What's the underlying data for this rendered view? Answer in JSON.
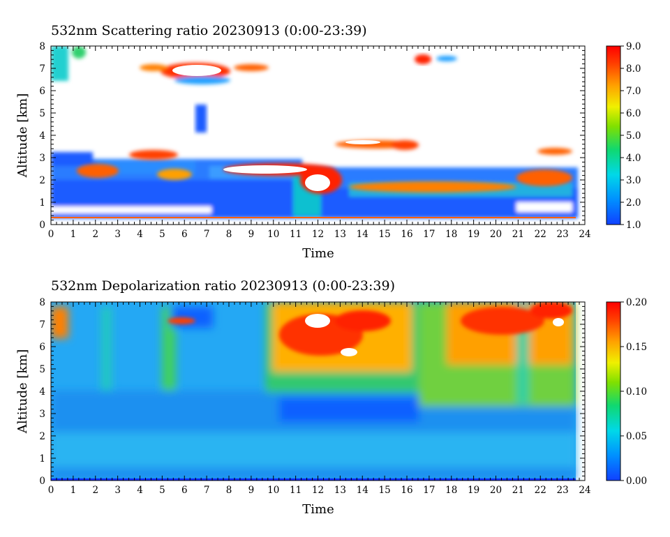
{
  "chart_data": [
    {
      "type": "heatmap",
      "title": "532nm Scattering ratio  20230913 (0:00-23:39)",
      "xlabel": "Time",
      "ylabel": "Altitude [km]",
      "xlim": [
        0,
        24
      ],
      "ylim": [
        0,
        8
      ],
      "x_ticks": [
        "0",
        "1",
        "2",
        "3",
        "4",
        "5",
        "6",
        "7",
        "8",
        "9",
        "10",
        "11",
        "12",
        "13",
        "14",
        "15",
        "16",
        "17",
        "18",
        "19",
        "20",
        "21",
        "22",
        "23",
        "24"
      ],
      "y_ticks": [
        "0",
        "1",
        "2",
        "3",
        "4",
        "5",
        "6",
        "7",
        "8"
      ],
      "data_end_time": 23.65,
      "colorbar": {
        "min": 1.0,
        "max": 9.0,
        "ticks": [
          "1.0",
          "2.0",
          "3.0",
          "4.0",
          "5.0",
          "6.0",
          "7.0",
          "8.0",
          "9.0"
        ],
        "colors": [
          "#1040ff",
          "#00b8ff",
          "#00e0a0",
          "#30d030",
          "#f0f000",
          "#ffa000",
          "#ff4000",
          "#ff0000"
        ]
      },
      "features": [
        {
          "desc": "boundary layer aerosol",
          "time": [
            0,
            23.65
          ],
          "altitude": [
            0.3,
            2.2
          ],
          "value": 2.0
        },
        {
          "desc": "cloud near 2.4 km",
          "time": [
            7.5,
            11
          ],
          "altitude": [
            2.1,
            2.7
          ],
          "value": 9.0
        },
        {
          "desc": "cloud near 2.3 km",
          "time": [
            11,
            13.5
          ],
          "altitude": [
            1.4,
            2.7
          ],
          "value": 9.0
        },
        {
          "desc": "low cloud near 1.5 km",
          "time": [
            14,
            23
          ],
          "altitude": [
            1.2,
            1.9
          ],
          "value": 8.0
        },
        {
          "desc": "cloud near 3.7 km",
          "time": [
            12.5,
            17.5
          ],
          "altitude": [
            3.4,
            3.9
          ],
          "value": 9.0
        },
        {
          "desc": "cloud near 7.0 km",
          "time": [
            4,
            10
          ],
          "altitude": [
            6.6,
            7.3
          ],
          "value": 9.0
        },
        {
          "desc": "cirrus near 7.5 km",
          "time": [
            15.5,
            18.5
          ],
          "altitude": [
            7.0,
            7.8
          ],
          "value": 8.0
        },
        {
          "desc": "cloud near 7.5 km",
          "time": [
            0,
            1.5
          ],
          "altitude": [
            6.4,
            8.0
          ],
          "value": 6.0
        },
        {
          "desc": "aerosol layer near 4.5 km",
          "time": [
            6.5,
            7.1
          ],
          "altitude": [
            4.0,
            5.5
          ],
          "value": 1.6
        }
      ]
    },
    {
      "type": "heatmap",
      "title": "532nm Depolarization ratio  20230913 (0:00-23:39)",
      "xlabel": "Time",
      "ylabel": "Altitude [km]",
      "xlim": [
        0,
        24
      ],
      "ylim": [
        0,
        8
      ],
      "x_ticks": [
        "0",
        "1",
        "2",
        "3",
        "4",
        "5",
        "6",
        "7",
        "8",
        "9",
        "10",
        "11",
        "12",
        "13",
        "14",
        "15",
        "16",
        "17",
        "18",
        "19",
        "20",
        "21",
        "22",
        "23",
        "24"
      ],
      "y_ticks": [
        "0",
        "1",
        "2",
        "3",
        "4",
        "5",
        "6",
        "7",
        "8"
      ],
      "data_end_time": 23.65,
      "colorbar": {
        "min": 0.0,
        "max": 0.2,
        "ticks": [
          "0.00",
          "0.05",
          "0.10",
          "0.15",
          "0.20"
        ],
        "colors": [
          "#1040ff",
          "#00b8ff",
          "#00e0a0",
          "#30d030",
          "#f0f000",
          "#ffa000",
          "#ff4000",
          "#ff0000"
        ]
      },
      "features": [
        {
          "desc": "background",
          "time": [
            0,
            23.65
          ],
          "altitude": [
            0,
            8
          ],
          "value": 0.04
        },
        {
          "desc": "high depolarization band",
          "time": [
            10,
            16.5
          ],
          "altitude": [
            4.0,
            8.0
          ],
          "value": 0.17
        },
        {
          "desc": "high depolarization band",
          "time": [
            17,
            23.65
          ],
          "altitude": [
            4.5,
            8.0
          ],
          "value": 0.16
        },
        {
          "desc": "low depolarization layer",
          "time": [
            10,
            16
          ],
          "altitude": [
            2.5,
            3.5
          ],
          "value": 0.02
        },
        {
          "desc": "depolarization near 7.5 km",
          "time": [
            0,
            1
          ],
          "altitude": [
            6.5,
            8.0
          ],
          "value": 0.14
        },
        {
          "desc": "depolarization column",
          "time": [
            4.8,
            5.4
          ],
          "altitude": [
            4.0,
            8.0
          ],
          "value": 0.09
        },
        {
          "desc": "depolarization column",
          "time": [
            2.3,
            2.8
          ],
          "altitude": [
            4.0,
            8.0
          ],
          "value": 0.07
        }
      ]
    }
  ]
}
